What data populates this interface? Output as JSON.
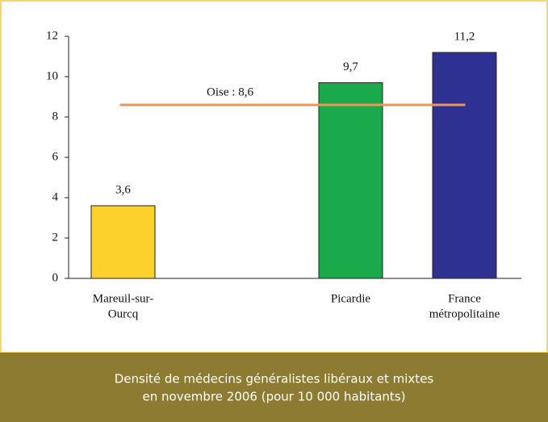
{
  "chart_data": {
    "type": "bar",
    "categories": [
      [
        "Mareuil-sur-",
        "Ourcq"
      ],
      null,
      [
        "Picardie"
      ],
      [
        "France",
        "métropolitaine"
      ]
    ],
    "values": [
      3.6,
      null,
      9.7,
      11.2
    ],
    "value_labels": [
      "3,6",
      null,
      "9,7",
      "11,2"
    ],
    "colors": [
      "#fdd12b",
      null,
      "#1aa94b",
      "#2e3192"
    ],
    "ylim": [
      0,
      12
    ],
    "yticks": [
      0,
      2,
      4,
      6,
      8,
      10,
      12
    ],
    "grid": false,
    "reference": {
      "value": 8.6,
      "label": "Oise : 8,6",
      "color": "#f19459"
    },
    "caption": [
      "Densité de médecins généralistes libéraux et mixtes",
      "en novembre 2006 (pour 10 000 habitants)"
    ]
  }
}
